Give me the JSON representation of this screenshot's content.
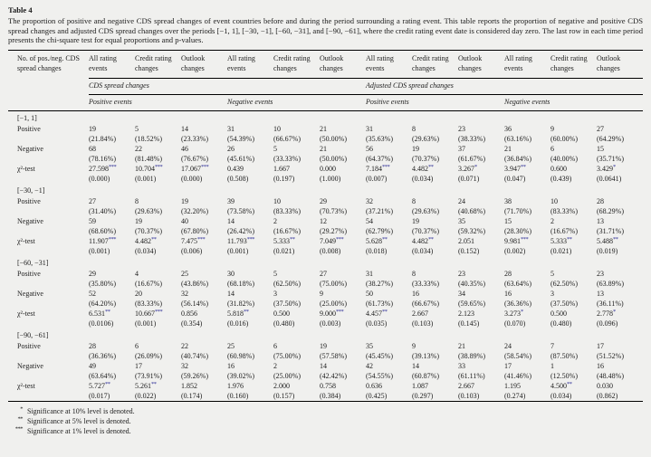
{
  "doc": {
    "table_label": "Table 4",
    "caption": "The proportion of positive and negative CDS spread changes of event countries before and during the period surrounding a rating event. This table reports the proportion of negative and positive CDS spread changes and adjusted CDS spread changes over the periods [−1, 1], [−30, −1], [−60, −31], and [−90, −61], where the credit rating event date is considered day zero. The last row in each time period presents the chi-square test for equal proportions and p-values."
  },
  "table": {
    "stub_header": "No. of pos./neg. CDS spread changes",
    "col_headers": [
      "All rating events",
      "Credit rating changes",
      "Outlook changes",
      "All rating events",
      "Credit rating changes",
      "Outlook changes",
      "All rating events",
      "Credit rating changes",
      "Outlook changes",
      "All rating events",
      "Credit rating changes",
      "Outlook changes"
    ],
    "group_headers": [
      "CDS spread changes",
      "Adjusted CDS spread changes"
    ],
    "event_headers": [
      "Positive events",
      "Negative events",
      "Positive events",
      "Negative events"
    ],
    "row_labels": {
      "positive": "Positive",
      "negative": "Negative",
      "chi": "χ²-test"
    },
    "sections": [
      {
        "period": "[−1, 1]",
        "positive": {
          "counts": [
            "19",
            "5",
            "14",
            "31",
            "10",
            "21",
            "31",
            "8",
            "23",
            "36",
            "9",
            "27"
          ],
          "pcts": [
            "(21.84%)",
            "(18.52%)",
            "(23.33%)",
            "(54.39%)",
            "(66.67%)",
            "(50.00%)",
            "(35.63%)",
            "(29.63%)",
            "(38.33%)",
            "(63.16%)",
            "(60.00%)",
            "(64.29%)"
          ]
        },
        "negative": {
          "counts": [
            "68",
            "22",
            "46",
            "26",
            "5",
            "21",
            "56",
            "19",
            "37",
            "21",
            "6",
            "15"
          ],
          "pcts": [
            "(78.16%)",
            "(81.48%)",
            "(76.67%)",
            "(45.61%)",
            "(33.33%)",
            "(50.00%)",
            "(64.37%)",
            "(70.37%)",
            "(61.67%)",
            "(36.84%)",
            "(40.00%)",
            "(35.71%)"
          ]
        },
        "chi": {
          "stats": [
            "27.598***",
            "10.704***",
            "17.067***",
            "0.439",
            "1.667",
            "0.000",
            "7.184***",
            "4.482**",
            "3.267*",
            "3.947**",
            "0.600",
            "3.429*"
          ],
          "pvals": [
            "(0.000)",
            "(0.001)",
            "(0.000)",
            "(0.508)",
            "(0.197)",
            "(1.000)",
            "(0.007)",
            "(0.034)",
            "(0.071)",
            "(0.047)",
            "(0.439)",
            "(0.0641)"
          ]
        }
      },
      {
        "period": "[−30, −1]",
        "positive": {
          "counts": [
            "27",
            "8",
            "19",
            "39",
            "10",
            "29",
            "32",
            "8",
            "24",
            "38",
            "10",
            "28"
          ],
          "pcts": [
            "(31.40%)",
            "(29.63%)",
            "(32.20%)",
            "(73.58%)",
            "(83.33%)",
            "(70.73%)",
            "(37.21%)",
            "(29.63%)",
            "(40.68%)",
            "(71.70%)",
            "(83.33%)",
            "(68.29%)"
          ]
        },
        "negative": {
          "counts": [
            "59",
            "19",
            "40",
            "14",
            "2",
            "12",
            "54",
            "19",
            "35",
            "15",
            "2",
            "13"
          ],
          "pcts": [
            "(68.60%)",
            "(70.37%)",
            "(67.80%)",
            "(26.42%)",
            "(16.67%)",
            "(29.27%)",
            "(62.79%)",
            "(70.37%)",
            "(59.32%)",
            "(28.30%)",
            "(16.67%)",
            "(31.71%)"
          ]
        },
        "chi": {
          "stats": [
            "11.907***",
            "4.482**",
            "7.475***",
            "11.793***",
            "5.333**",
            "7.049***",
            "5.628**",
            "4.482**",
            "2.051",
            "9.981***",
            "5.333**",
            "5.488**"
          ],
          "pvals": [
            "(0.001)",
            "(0.034)",
            "(0.006)",
            "(0.001)",
            "(0.021)",
            "(0.008)",
            "(0.018)",
            "(0.034)",
            "(0.152)",
            "(0.002)",
            "(0.021)",
            "(0.019)"
          ]
        }
      },
      {
        "period": "[−60, −31]",
        "positive": {
          "counts": [
            "29",
            "4",
            "25",
            "30",
            "5",
            "27",
            "31",
            "8",
            "23",
            "28",
            "5",
            "23"
          ],
          "pcts": [
            "(35.80%)",
            "(16.67%)",
            "(43.86%)",
            "(68.18%)",
            "(62.50%)",
            "(75.00%)",
            "(38.27%)",
            "(33.33%)",
            "(40.35%)",
            "(63.64%)",
            "(62.50%)",
            "(63.89%)"
          ]
        },
        "negative": {
          "counts": [
            "52",
            "20",
            "32",
            "14",
            "3",
            "9",
            "50",
            "16",
            "34",
            "16",
            "3",
            "13"
          ],
          "pcts": [
            "(64.20%)",
            "(83.33%)",
            "(56.14%)",
            "(31.82%)",
            "(37.50%)",
            "(25.00%)",
            "(61.73%)",
            "(66.67%)",
            "(59.65%)",
            "(36.36%)",
            "(37.50%)",
            "(36.11%)"
          ]
        },
        "chi": {
          "stats": [
            "6.531**",
            "10.667***",
            "0.856",
            "5.818**",
            "0.500",
            "9.000***",
            "4.457**",
            "2.667",
            "2.123",
            "3.273*",
            "0.500",
            "2.778*"
          ],
          "pvals": [
            "(0.0106)",
            "(0.001)",
            "(0.354)",
            "(0.016)",
            "(0.480)",
            "(0.003)",
            "(0.035)",
            "(0.103)",
            "(0.145)",
            "(0.070)",
            "(0.480)",
            "(0.096)"
          ]
        }
      },
      {
        "period": "[−90, −61]",
        "positive": {
          "counts": [
            "28",
            "6",
            "22",
            "25",
            "6",
            "19",
            "35",
            "9",
            "21",
            "24",
            "7",
            "17"
          ],
          "pcts": [
            "(36.36%)",
            "(26.09%)",
            "(40.74%)",
            "(60.98%)",
            "(75.00%)",
            "(57.58%)",
            "(45.45%)",
            "(39.13%)",
            "(38.89%)",
            "(58.54%)",
            "(87.50%)",
            "(51.52%)"
          ]
        },
        "negative": {
          "counts": [
            "49",
            "17",
            "32",
            "16",
            "2",
            "14",
            "42",
            "14",
            "33",
            "17",
            "1",
            "16"
          ],
          "pcts": [
            "(63.64%)",
            "(73.91%)",
            "(59.26%)",
            "(39.02%)",
            "(25.00%)",
            "(42.42%)",
            "(54.55%)",
            "(60.87%)",
            "(61.11%)",
            "(41.46%)",
            "(12.50%)",
            "(48.48%)"
          ]
        },
        "chi": {
          "stats": [
            "5.727**",
            "5.261**",
            "1.852",
            "1.976",
            "2.000",
            "0.758",
            "0.636",
            "1.087",
            "2.667",
            "1.195",
            "4.500**",
            "0.030"
          ],
          "pvals": [
            "(0.017)",
            "(0.022)",
            "(0.174)",
            "(0.160)",
            "(0.157)",
            "(0.384)",
            "(0.425)",
            "(0.297)",
            "(0.103)",
            "(0.274)",
            "(0.034)",
            "(0.862)"
          ]
        }
      }
    ]
  },
  "footnotes": [
    {
      "marker": "*",
      "text": "Significance at 10% level is denoted."
    },
    {
      "marker": "**",
      "text": "Significance at 5% level is denoted."
    },
    {
      "marker": "***",
      "text": "Significance at 1% level is denoted."
    }
  ],
  "colors": {
    "star": "#2d2d96",
    "text": "#1c1c1c",
    "rule": "#000000",
    "background": "#f0f0ee"
  }
}
